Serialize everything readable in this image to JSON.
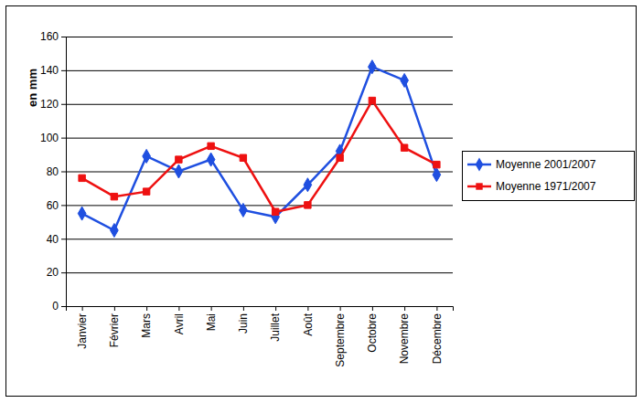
{
  "chart_data": {
    "type": "line",
    "y_label": "en mm",
    "categories": [
      "Janvier",
      "Février",
      "Mars",
      "Avril",
      "Mai",
      "Juin",
      "Juillet",
      "Août",
      "Septembre",
      "Octobre",
      "Novembre",
      "Décembre"
    ],
    "series": [
      {
        "name": "Moyenne 2001/2007",
        "color": "#1f4fe0",
        "marker": "diamond",
        "values": [
          55,
          45,
          89,
          80,
          87,
          57,
          53,
          72,
          92,
          142,
          134,
          78
        ]
      },
      {
        "name": "Moyenne 1971/2007",
        "color": "#ee1111",
        "marker": "square",
        "values": [
          76,
          65,
          68,
          87,
          95,
          88,
          56,
          60,
          88,
          122,
          94,
          84
        ]
      }
    ],
    "ylim": [
      0,
      160
    ],
    "yticks": [
      0,
      20,
      40,
      60,
      80,
      100,
      120,
      140,
      160
    ],
    "grid": true,
    "legend": "right"
  }
}
